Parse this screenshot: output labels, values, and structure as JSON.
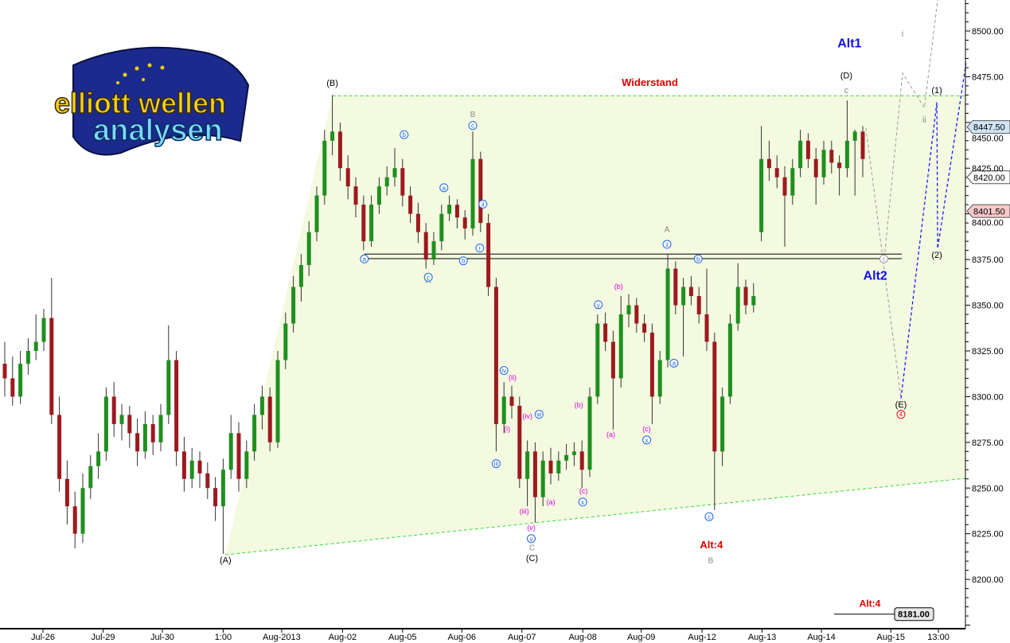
{
  "logo": {
    "line1": "elliott wellen",
    "line2": "analysen"
  },
  "chart_data": {
    "type": "candlestick",
    "ylim": [
      8173,
      8517
    ],
    "y_ticks": [
      8200,
      8225,
      8250,
      8275,
      8300,
      8325,
      8350,
      8375,
      8400,
      8425,
      8450,
      8475,
      8500
    ],
    "y_tick_labels": [
      "8200.00",
      "8225.00",
      "8250.00",
      "8275.00",
      "8300.00",
      "8325.00",
      "8350.00",
      "8375.00",
      "8400.00",
      "8425.00",
      "8450.00",
      "8475.00",
      "8500.00"
    ],
    "x_ticks": [
      {
        "label": "Jul-26",
        "at": 4.9
      },
      {
        "label": "Jul-29",
        "at": 12.6
      },
      {
        "label": "Jul-30",
        "at": 20.2
      },
      {
        "label": "1:00",
        "at": 28
      },
      {
        "label": "Aug-2013",
        "at": 35.5
      },
      {
        "label": "Aug-02",
        "at": 43.3
      },
      {
        "label": "Aug-05",
        "at": 51
      },
      {
        "label": "Aug-06",
        "at": 58.6
      },
      {
        "label": "Aug-07",
        "at": 66.3
      },
      {
        "label": "Aug-08",
        "at": 74.1
      },
      {
        "label": "Aug-09",
        "at": 81.6
      },
      {
        "label": "Aug-12",
        "at": 89.4
      },
      {
        "label": "Aug-13",
        "at": 97.1
      },
      {
        "label": "Aug-14",
        "at": 104.7
      },
      {
        "label": "Aug-15",
        "at": 113.6
      },
      {
        "label": "13:00",
        "at": 119.7
      }
    ],
    "colors": {
      "up": "#1f8f1f",
      "down": "#9c1a1f",
      "wick": "#333333",
      "resistance": "#33dd33",
      "zone": "#f4fae0",
      "projection_gray": "#999999",
      "projection_blue": "#1a1aff"
    },
    "ohlc": [
      [
        8318,
        8330,
        8300,
        8310
      ],
      [
        8310,
        8322,
        8295,
        8300
      ],
      [
        8300,
        8325,
        8296,
        8318
      ],
      [
        8318,
        8332,
        8312,
        8325
      ],
      [
        8325,
        8345,
        8320,
        8330
      ],
      [
        8330,
        8348,
        8325,
        8343
      ],
      [
        8343,
        8365,
        8285,
        8290
      ],
      [
        8290,
        8300,
        8248,
        8255
      ],
      [
        8255,
        8265,
        8230,
        8240
      ],
      [
        8240,
        8248,
        8217,
        8225
      ],
      [
        8225,
        8258,
        8220,
        8250
      ],
      [
        8250,
        8268,
        8244,
        8262
      ],
      [
        8262,
        8280,
        8255,
        8270
      ],
      [
        8270,
        8305,
        8265,
        8300
      ],
      [
        8300,
        8308,
        8278,
        8285
      ],
      [
        8285,
        8296,
        8276,
        8290
      ],
      [
        8290,
        8295,
        8272,
        8280
      ],
      [
        8280,
        8288,
        8262,
        8270
      ],
      [
        8270,
        8292,
        8266,
        8285
      ],
      [
        8285,
        8290,
        8268,
        8275
      ],
      [
        8275,
        8296,
        8270,
        8290
      ],
      [
        8290,
        8339,
        8285,
        8320
      ],
      [
        8320,
        8325,
        8262,
        8270
      ],
      [
        8270,
        8278,
        8248,
        8255
      ],
      [
        8255,
        8272,
        8250,
        8265
      ],
      [
        8265,
        8270,
        8250,
        8258
      ],
      [
        8258,
        8264,
        8244,
        8250
      ],
      [
        8250,
        8256,
        8232,
        8240
      ],
      [
        8240,
        8266,
        8214,
        8260
      ],
      [
        8260,
        8290,
        8255,
        8280
      ],
      [
        8280,
        8286,
        8248,
        8255
      ],
      [
        8255,
        8276,
        8250,
        8270
      ],
      [
        8270,
        8296,
        8265,
        8290
      ],
      [
        8290,
        8306,
        8282,
        8300
      ],
      [
        8300,
        8305,
        8270,
        8275
      ],
      [
        8275,
        8325,
        8272,
        8320
      ],
      [
        8320,
        8346,
        8315,
        8340
      ],
      [
        8340,
        8366,
        8335,
        8360
      ],
      [
        8360,
        8378,
        8352,
        8372
      ],
      [
        8372,
        8396,
        8366,
        8390
      ],
      [
        8390,
        8415,
        8385,
        8410
      ],
      [
        8410,
        8446,
        8405,
        8440
      ],
      [
        8440,
        8465,
        8432,
        8445
      ],
      [
        8445,
        8450,
        8418,
        8425
      ],
      [
        8425,
        8432,
        8408,
        8415
      ],
      [
        8415,
        8420,
        8398,
        8405
      ],
      [
        8405,
        8410,
        8380,
        8385
      ],
      [
        8385,
        8410,
        8382,
        8405
      ],
      [
        8405,
        8420,
        8400,
        8415
      ],
      [
        8415,
        8426,
        8410,
        8420
      ],
      [
        8420,
        8436,
        8415,
        8425
      ],
      [
        8425,
        8430,
        8404,
        8410
      ],
      [
        8410,
        8415,
        8395,
        8400
      ],
      [
        8400,
        8406,
        8384,
        8390
      ],
      [
        8390,
        8395,
        8370,
        8375
      ],
      [
        8375,
        8390,
        8372,
        8385
      ],
      [
        8385,
        8405,
        8380,
        8400
      ],
      [
        8400,
        8410,
        8396,
        8405
      ],
      [
        8405,
        8408,
        8392,
        8398
      ],
      [
        8398,
        8402,
        8386,
        8392
      ],
      [
        8392,
        8445,
        8388,
        8430
      ],
      [
        8430,
        8434,
        8390,
        8395
      ],
      [
        8395,
        8400,
        8355,
        8360
      ],
      [
        8360,
        8365,
        8270,
        8285
      ],
      [
        8285,
        8308,
        8280,
        8300
      ],
      [
        8300,
        8306,
        8288,
        8295
      ],
      [
        8295,
        8300,
        8250,
        8255
      ],
      [
        8255,
        8276,
        8240,
        8270
      ],
      [
        8270,
        8275,
        8231,
        8245
      ],
      [
        8245,
        8270,
        8240,
        8265
      ],
      [
        8265,
        8272,
        8252,
        8258
      ],
      [
        8258,
        8270,
        8254,
        8265
      ],
      [
        8265,
        8274,
        8260,
        8268
      ],
      [
        8268,
        8275,
        8262,
        8270
      ],
      [
        8270,
        8276,
        8250,
        8260
      ],
      [
        8260,
        8305,
        8256,
        8300
      ],
      [
        8300,
        8345,
        8296,
        8340
      ],
      [
        8340,
        8346,
        8325,
        8330
      ],
      [
        8330,
        8336,
        8282,
        8310
      ],
      [
        8310,
        8355,
        8305,
        8345
      ],
      [
        8345,
        8356,
        8338,
        8350
      ],
      [
        8350,
        8354,
        8335,
        8340
      ],
      [
        8340,
        8345,
        8330,
        8335
      ],
      [
        8335,
        8340,
        8285,
        8300
      ],
      [
        8300,
        8325,
        8296,
        8320
      ],
      [
        8320,
        8378,
        8316,
        8370
      ],
      [
        8370,
        8374,
        8345,
        8350
      ],
      [
        8350,
        8365,
        8322,
        8360
      ],
      [
        8360,
        8366,
        8350,
        8355
      ],
      [
        8355,
        8360,
        8340,
        8345
      ],
      [
        8345,
        8370,
        8325,
        8330
      ],
      [
        8330,
        8335,
        8238,
        8270
      ],
      [
        8270,
        8305,
        8262,
        8300
      ],
      [
        8300,
        8345,
        8296,
        8340
      ],
      [
        8340,
        8373,
        8336,
        8360
      ],
      [
        8360,
        8364,
        8345,
        8350
      ],
      [
        8350,
        8362,
        8346,
        8355
      ],
      [
        8390,
        8448,
        8385,
        8430
      ],
      [
        8430,
        8440,
        8418,
        8425
      ],
      [
        8425,
        8432,
        8414,
        8420
      ],
      [
        8420,
        8426,
        8382,
        8410
      ],
      [
        8410,
        8430,
        8405,
        8425
      ],
      [
        8425,
        8446,
        8420,
        8440
      ],
      [
        8440,
        8444,
        8425,
        8430
      ],
      [
        8430,
        8436,
        8405,
        8420
      ],
      [
        8420,
        8440,
        8416,
        8435
      ],
      [
        8435,
        8440,
        8422,
        8428
      ],
      [
        8428,
        8432,
        8410,
        8425
      ],
      [
        8425,
        8462,
        8420,
        8440
      ],
      [
        8440,
        8446,
        8410,
        8445
      ],
      [
        8445,
        8448,
        8420,
        8430
      ]
    ],
    "lines": {
      "resistance": {
        "from": [
          42,
          8464.5
        ],
        "to": [
          123,
          8464.5
        ]
      },
      "support": {
        "from": [
          28.3,
          8213.5
        ],
        "to": [
          123,
          8255.3
        ]
      },
      "horizontal_levels": [
        {
          "price": 8378,
          "from": 46.1,
          "to": 115
        },
        {
          "price": 8375.5,
          "from": 46.1,
          "to": 115
        }
      ],
      "gray_paths": [
        [
          [
            110.4,
            8447
          ],
          [
            114.9,
            8299
          ]
        ],
        [
          [
            112.7,
            8373
          ],
          [
            115.1,
            8477
          ],
          [
            117.9,
            8458
          ],
          [
            119.6,
            8517
          ]
        ]
      ],
      "blue_paths": [
        [
          [
            114.9,
            8299
          ],
          [
            119.5,
            8461
          ],
          [
            119.6,
            8381
          ],
          [
            123.3,
            8484
          ]
        ]
      ]
    },
    "price_labels": [
      {
        "text": "8447.50",
        "price": 8447.5,
        "bg": "#cfe4f7"
      },
      {
        "text": "8420.00",
        "price": 8420,
        "bg": "#ffffff"
      },
      {
        "text": "8401.50",
        "price": 8401.5,
        "bg": "#f7c8c8"
      }
    ],
    "bottom_marker": {
      "label": "Alt:4",
      "value": "8181.00",
      "price": 8181
    },
    "annotations": [
      {
        "text": "(B)",
        "at": 42,
        "price": 8470,
        "color": "#000",
        "size": 11
      },
      {
        "text": "(A)",
        "at": 28.3,
        "price": 8209,
        "color": "#000",
        "size": 11
      },
      {
        "text": "(C)",
        "at": 67.6,
        "price": 8210,
        "color": "#000",
        "size": 11
      },
      {
        "text": "(D)",
        "at": 107.9,
        "price": 8474,
        "color": "#000",
        "size": 11
      },
      {
        "text": "(E)",
        "at": 114.9,
        "price": 8294,
        "color": "#000",
        "size": 11
      },
      {
        "text": "Widerstand",
        "at": 82.7,
        "price": 8470,
        "color": "#e00000",
        "size": 13,
        "bold": true
      },
      {
        "text": "Alt1",
        "at": 108.3,
        "price": 8491,
        "color": "#1010ee",
        "size": 16,
        "bold": true
      },
      {
        "text": "Alt2",
        "at": 111.6,
        "price": 8364,
        "color": "#1010ee",
        "size": 16,
        "bold": true
      },
      {
        "text": "Alt:4",
        "at": 90.6,
        "price": 8217,
        "color": "#e00000",
        "size": 13,
        "bold": true
      },
      {
        "text": "(1)",
        "at": 119.5,
        "price": 8466,
        "color": "#000",
        "size": 11
      },
      {
        "text": "(2)",
        "at": 119.5,
        "price": 8376,
        "color": "#000",
        "size": 11
      },
      {
        "text": "i",
        "at": 115.1,
        "price": 8497,
        "color": "#888",
        "size": 11
      },
      {
        "text": "ii",
        "at": 117.9,
        "price": 8450,
        "color": "#888",
        "size": 11
      },
      {
        "text": "c",
        "at": 107.9,
        "price": 8466,
        "color": "#888",
        "size": 11
      },
      {
        "text": "B",
        "at": 60,
        "price": 8453,
        "color": "#888",
        "size": 10
      },
      {
        "text": "A",
        "at": 54.3,
        "price": 8362,
        "color": "#888",
        "size": 10
      },
      {
        "text": "A",
        "at": 84.9,
        "price": 8390,
        "color": "#888",
        "size": 10
      },
      {
        "text": "B",
        "at": 90.5,
        "price": 8209,
        "color": "#888",
        "size": 10
      },
      {
        "text": "C",
        "at": 67.6,
        "price": 8216,
        "color": "#888",
        "size": 10
      },
      {
        "text": "(b)",
        "at": 78.7,
        "price": 8359,
        "color": "#dd00dd",
        "size": 9
      },
      {
        "text": "(b)",
        "at": 73.6,
        "price": 8294,
        "color": "#dd00dd",
        "size": 9
      },
      {
        "text": "(a)",
        "at": 77.7,
        "price": 8278,
        "color": "#dd00dd",
        "size": 9
      },
      {
        "text": "(c)",
        "at": 82.3,
        "price": 8281,
        "color": "#dd00dd",
        "size": 9
      },
      {
        "text": "(c)",
        "at": 74.2,
        "price": 8247,
        "color": "#dd00dd",
        "size": 9
      },
      {
        "text": "(a)",
        "at": 70,
        "price": 8241,
        "color": "#dd00dd",
        "size": 9
      },
      {
        "text": "(iii)",
        "at": 66.6,
        "price": 8236,
        "color": "#dd00dd",
        "size": 9
      },
      {
        "text": "(ii)",
        "at": 65.1,
        "price": 8309,
        "color": "#dd00dd",
        "size": 9
      },
      {
        "text": "(i)",
        "at": 64.4,
        "price": 8281,
        "color": "#dd00dd",
        "size": 9
      },
      {
        "text": "(iv)",
        "at": 67,
        "price": 8288,
        "color": "#dd00dd",
        "size": 9
      },
      {
        "text": "(v)",
        "at": 67.5,
        "price": 8227,
        "color": "#dd00dd",
        "size": 9
      }
    ],
    "circled": [
      {
        "text": "a",
        "at": 46.1,
        "price": 8374,
        "color": "#1a66ee"
      },
      {
        "text": "c",
        "at": 54.3,
        "price": 8364,
        "color": "#1a66ee"
      },
      {
        "text": "b",
        "at": 58.8,
        "price": 8373,
        "color": "#1a66ee"
      },
      {
        "text": "b",
        "at": 51.2,
        "price": 8442,
        "color": "#1a66ee"
      },
      {
        "text": "a",
        "at": 56.3,
        "price": 8413,
        "color": "#1a66ee"
      },
      {
        "text": "c",
        "at": 60,
        "price": 8447,
        "color": "#1a66ee"
      },
      {
        "text": "ii",
        "at": 61.3,
        "price": 8404,
        "color": "#1a66ee"
      },
      {
        "text": "i",
        "at": 60.9,
        "price": 8380,
        "color": "#1a66ee"
      },
      {
        "text": "z",
        "at": 84.9,
        "price": 8382,
        "color": "#1a66ee"
      },
      {
        "text": "b",
        "at": 88.9,
        "price": 8374,
        "color": "#1a66ee"
      },
      {
        "text": "y",
        "at": 76.1,
        "price": 8349,
        "color": "#1a66ee"
      },
      {
        "text": "a",
        "at": 85.8,
        "price": 8317,
        "color": "#1a66ee"
      },
      {
        "text": "x",
        "at": 82.3,
        "price": 8275,
        "color": "#1a66ee"
      },
      {
        "text": "c",
        "at": 90.3,
        "price": 8233,
        "color": "#1a66ee"
      },
      {
        "text": "iii",
        "at": 63,
        "price": 8262,
        "color": "#1a66ee"
      },
      {
        "text": "iv",
        "at": 64,
        "price": 8313,
        "color": "#1a66ee"
      },
      {
        "text": "w",
        "at": 68.5,
        "price": 8289,
        "color": "#1a66ee"
      },
      {
        "text": "v",
        "at": 67.5,
        "price": 8221,
        "color": "#1a66ee"
      },
      {
        "text": "x",
        "at": 74.1,
        "price": 8241,
        "color": "#1a66ee"
      },
      {
        "text": "4",
        "at": 114.9,
        "price": 8289,
        "color": "#ee0000"
      },
      {
        "text": "c",
        "at": 112.7,
        "price": 8374,
        "color": "#999999"
      }
    ]
  }
}
